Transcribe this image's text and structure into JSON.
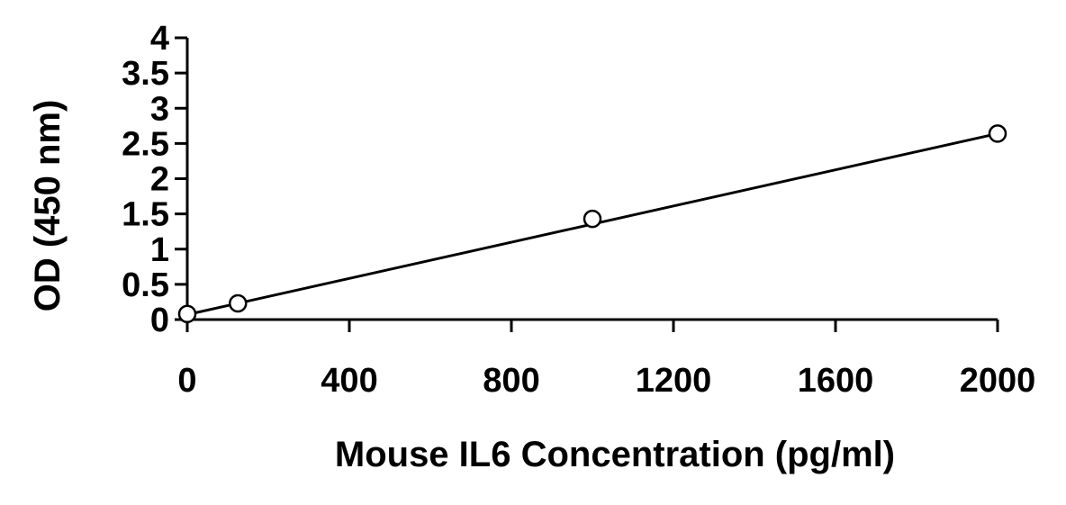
{
  "chart_data": {
    "type": "scatter",
    "title": "",
    "xlabel": "Mouse IL6 Concentration (pg/ml)",
    "ylabel": "OD (450 nm)",
    "xlim": [
      0,
      2000
    ],
    "ylim": [
      0,
      4
    ],
    "x_ticks": [
      "0",
      "400",
      "800",
      "1200",
      "1600",
      "2000"
    ],
    "y_ticks": [
      "0",
      "0.5",
      "1",
      "1.5",
      "2",
      "2.5",
      "3",
      "3.5",
      "4"
    ],
    "grid": false,
    "legend": "none",
    "series": [
      {
        "x": [
          0,
          125,
          1000,
          2000
        ],
        "y": [
          0.08,
          0.23,
          1.43,
          2.64
        ],
        "marker": "open-circle",
        "color": "#000000"
      }
    ],
    "fit_line": {
      "x": [
        0,
        2000
      ],
      "y": [
        0.07,
        2.64
      ]
    }
  }
}
